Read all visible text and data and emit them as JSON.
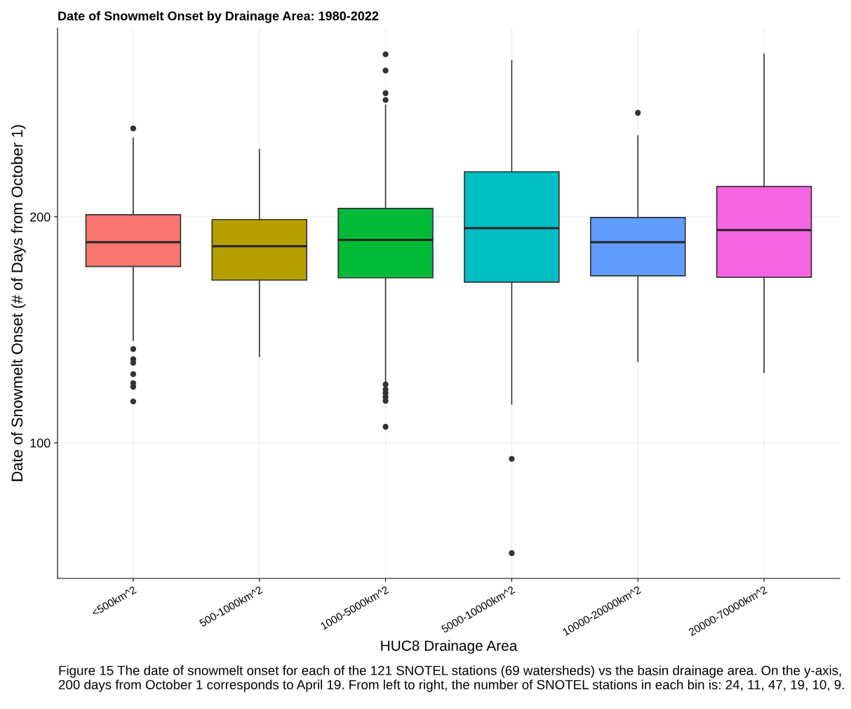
{
  "chart_data": {
    "type": "box",
    "title": "Date of Snowmelt Onset by Drainage Area: 1980-2022",
    "xlabel": "HUC8 Drainage Area",
    "ylabel": "Date of Snowmelt Onset (# of Days from October 1)",
    "categories": [
      "<500km^2",
      "500-1000km^2",
      "1000-5000km^2",
      "5000-10000km^2",
      "10000-20000km^2",
      "20000-70000km^2"
    ],
    "colors": [
      "#f8766d",
      "#b79f00",
      "#00ba38",
      "#00bfc4",
      "#619cff",
      "#f564e3"
    ],
    "boxes": [
      {
        "low": 145.3,
        "q1": 178.0,
        "median": 188.8,
        "q3": 200.9,
        "high": 234.8,
        "outliers": [
          239.1,
          141.5,
          137.0,
          135.4,
          130.4,
          126.4,
          124.8,
          118.3
        ]
      },
      {
        "low": 138.2,
        "q1": 172.0,
        "median": 187.0,
        "q3": 198.8,
        "high": 229.8
      },
      {
        "low": 126.5,
        "q1": 173.0,
        "median": 189.8,
        "q3": 203.7,
        "high": 249.4,
        "outliers": [
          271.9,
          264.7,
          254.7,
          251.7,
          125.8,
          123.6,
          122.0,
          120.2,
          118.6,
          107.1
        ]
      },
      {
        "low": 117.1,
        "q1": 171.1,
        "median": 195.0,
        "q3": 219.9,
        "high": 269.1,
        "outliers": [
          92.9,
          51.2
        ]
      },
      {
        "low": 136.0,
        "q1": 173.9,
        "median": 188.8,
        "q3": 199.7,
        "high": 235.8,
        "outliers": [
          246.0
        ]
      },
      {
        "low": 131.1,
        "q1": 173.3,
        "median": 194.1,
        "q3": 213.4,
        "high": 271.9
      }
    ],
    "ylim": [
      40,
      283.5
    ],
    "yticks": [
      100,
      200
    ],
    "grid": true,
    "annotations": [
      "Figure 15 The date of snowmelt onset for each of the 121 SNOTEL stations (69 watersheds) vs the basin drainage area. On the y-axis, 200 days from October 1 corresponds to April 19. From left to right, the number of SNOTEL stations in each bin is: 24, 11, 47, 19, 10, 9."
    ]
  }
}
